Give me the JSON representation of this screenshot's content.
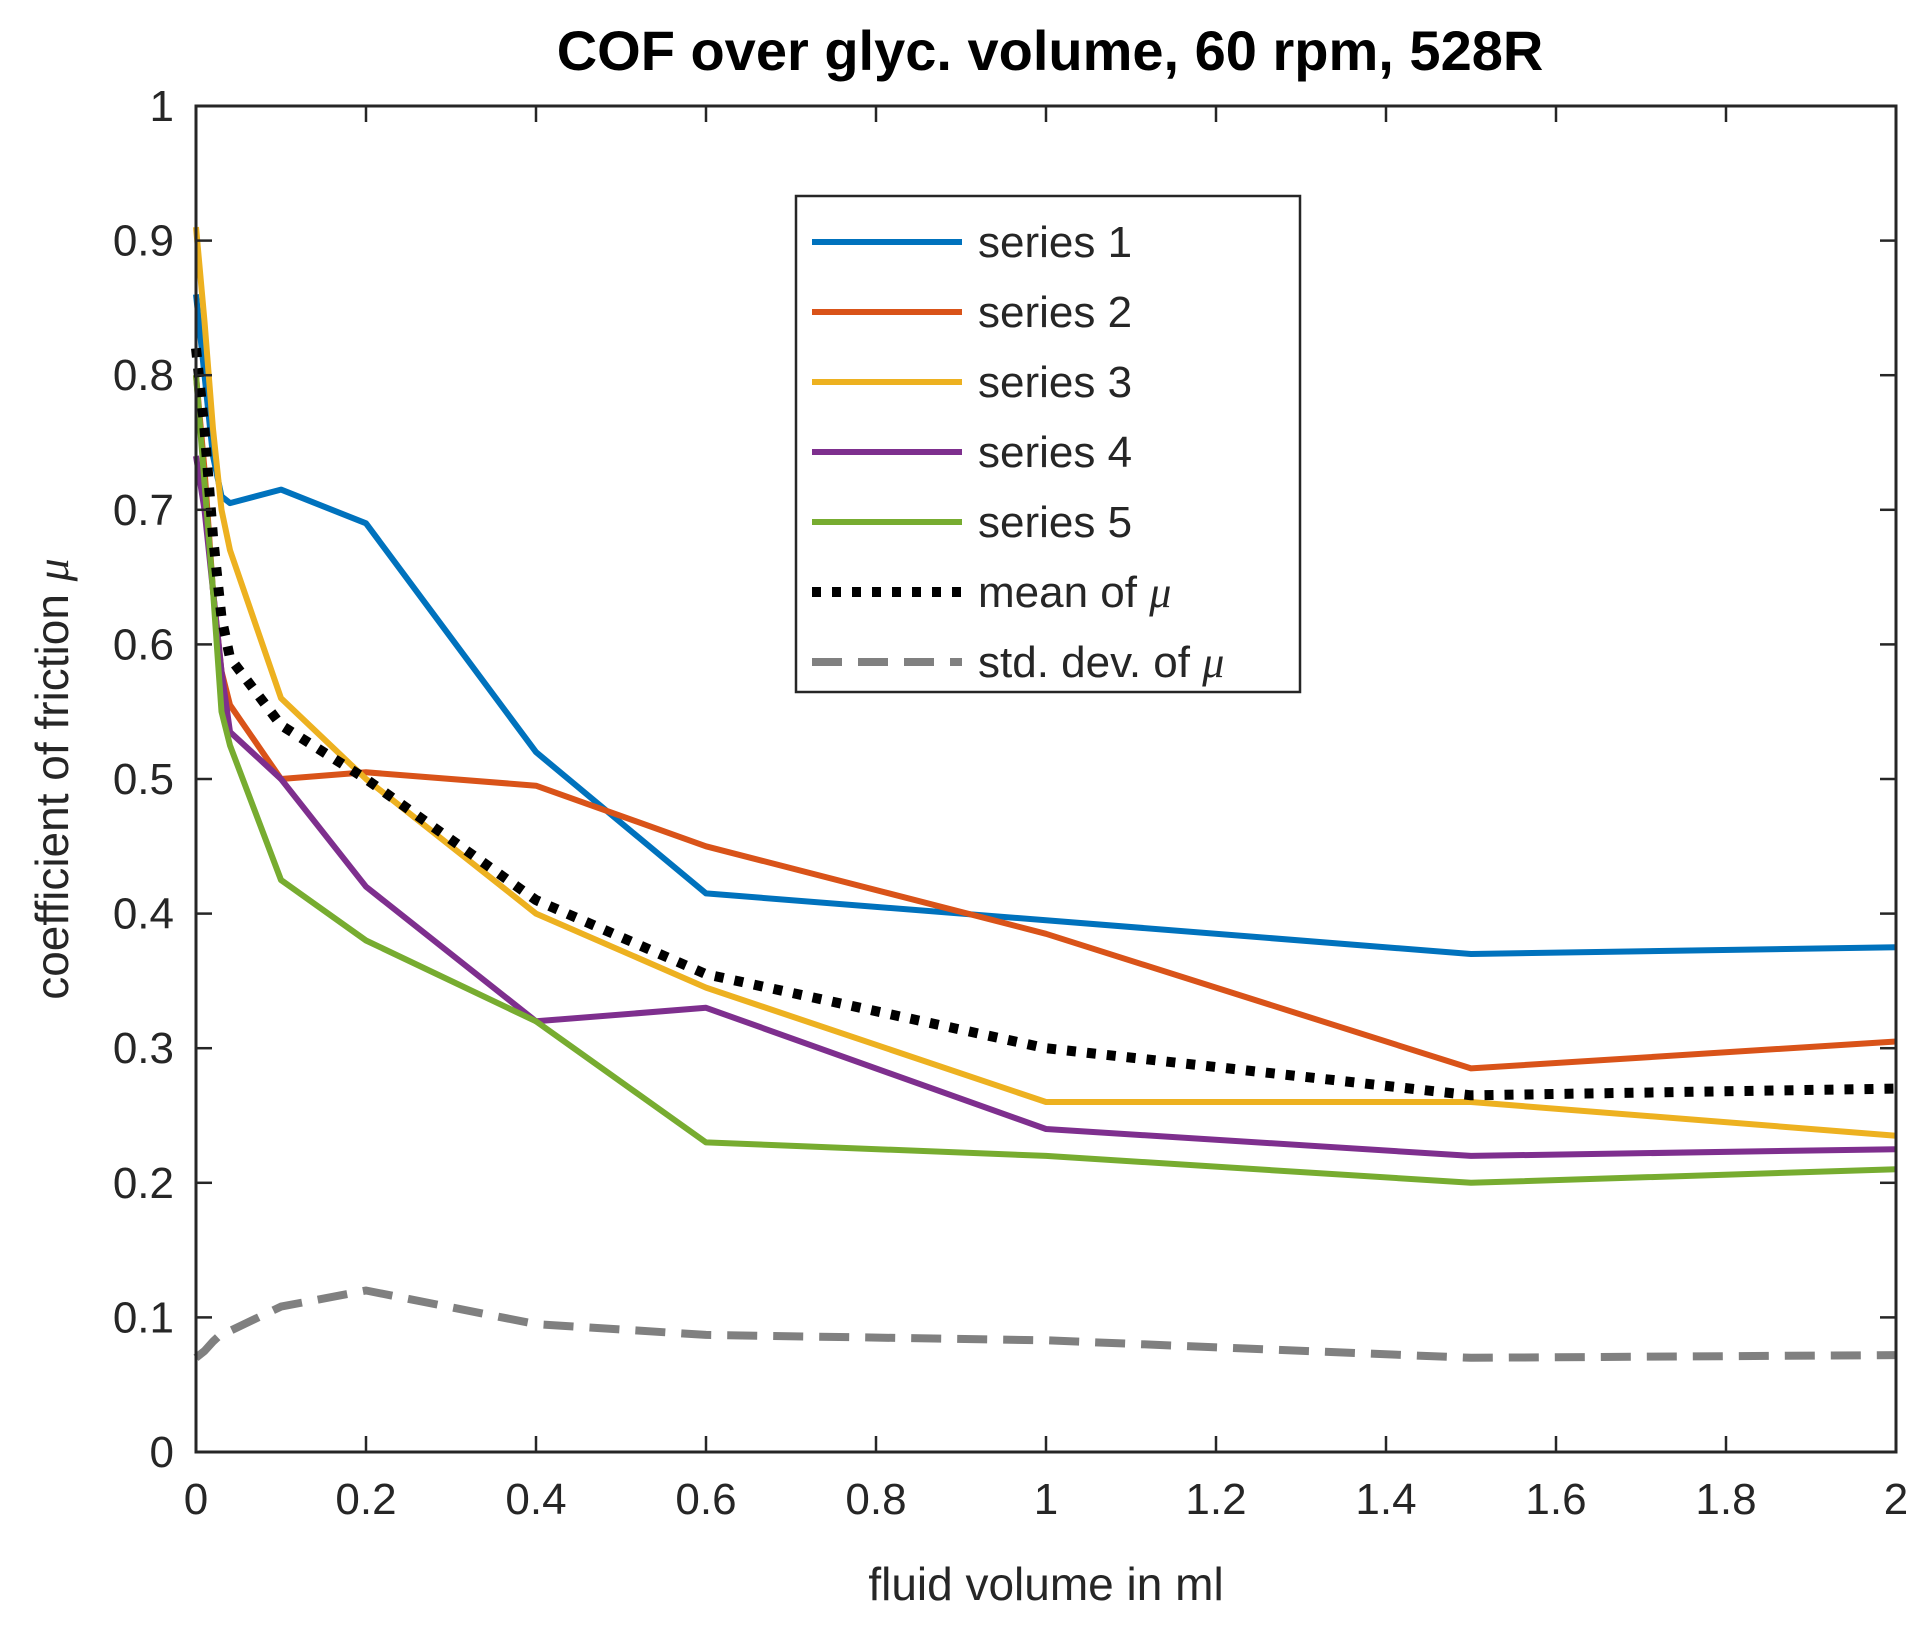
{
  "chart_data": {
    "type": "line",
    "title": "COF over glyc. volume, 60 rpm, 528R",
    "xlabel": "fluid volume in ml",
    "ylabel": "coefficient of friction μ",
    "xlim": [
      0,
      2
    ],
    "ylim": [
      0,
      1
    ],
    "xticks": [
      0,
      0.2,
      0.4,
      0.6,
      0.8,
      1,
      1.2,
      1.4,
      1.6,
      1.8,
      2
    ],
    "xtick_labels": [
      "0",
      "0.2",
      "0.4",
      "0.6",
      "0.8",
      "1",
      "1.2",
      "1.4",
      "1.6",
      "1.8",
      "2"
    ],
    "yticks": [
      0,
      0.1,
      0.2,
      0.3,
      0.4,
      0.5,
      0.6,
      0.7,
      0.8,
      0.9,
      1
    ],
    "ytick_labels": [
      "0",
      "0.1",
      "0.2",
      "0.3",
      "0.4",
      "0.5",
      "0.6",
      "0.7",
      "0.8",
      "0.9",
      "1"
    ],
    "grid": false,
    "legend_position": "top-center",
    "x": [
      0,
      0.01,
      0.02,
      0.03,
      0.04,
      0.1,
      0.2,
      0.4,
      0.6,
      1,
      1.5,
      2
    ],
    "series": [
      {
        "name": "series 1",
        "color": "#0072BD",
        "style": "solid",
        "values": [
          0.86,
          0.8,
          0.74,
          0.71,
          0.705,
          0.715,
          0.69,
          0.52,
          0.415,
          0.395,
          0.37,
          0.375
        ]
      },
      {
        "name": "series 2",
        "color": "#D95319",
        "style": "solid",
        "values": [
          0.8,
          0.73,
          0.64,
          0.58,
          0.555,
          0.5,
          0.505,
          0.495,
          0.45,
          0.385,
          0.285,
          0.305
        ]
      },
      {
        "name": "series 3",
        "color": "#EDB120",
        "style": "solid",
        "values": [
          0.91,
          0.84,
          0.76,
          0.7,
          0.67,
          0.56,
          0.5,
          0.4,
          0.345,
          0.26,
          0.26,
          0.235
        ]
      },
      {
        "name": "series 4",
        "color": "#7E2F8E",
        "style": "solid",
        "values": [
          0.74,
          0.7,
          0.64,
          0.58,
          0.535,
          0.5,
          0.42,
          0.32,
          0.33,
          0.24,
          0.22,
          0.225
        ]
      },
      {
        "name": "series 5",
        "color": "#77AC30",
        "style": "solid",
        "values": [
          0.8,
          0.72,
          0.64,
          0.55,
          0.525,
          0.425,
          0.38,
          0.32,
          0.23,
          0.22,
          0.2,
          0.21
        ]
      },
      {
        "name": "mean of μ",
        "color": "#000000",
        "style": "dotted",
        "values": [
          0.82,
          0.76,
          0.68,
          0.62,
          0.59,
          0.54,
          0.5,
          0.41,
          0.355,
          0.3,
          0.265,
          0.27
        ]
      },
      {
        "name": "std. dev. of μ",
        "color": "#808080",
        "style": "dashed",
        "values": [
          0.07,
          0.075,
          0.082,
          0.088,
          0.09,
          0.108,
          0.12,
          0.095,
          0.087,
          0.083,
          0.07,
          0.072
        ]
      }
    ]
  }
}
